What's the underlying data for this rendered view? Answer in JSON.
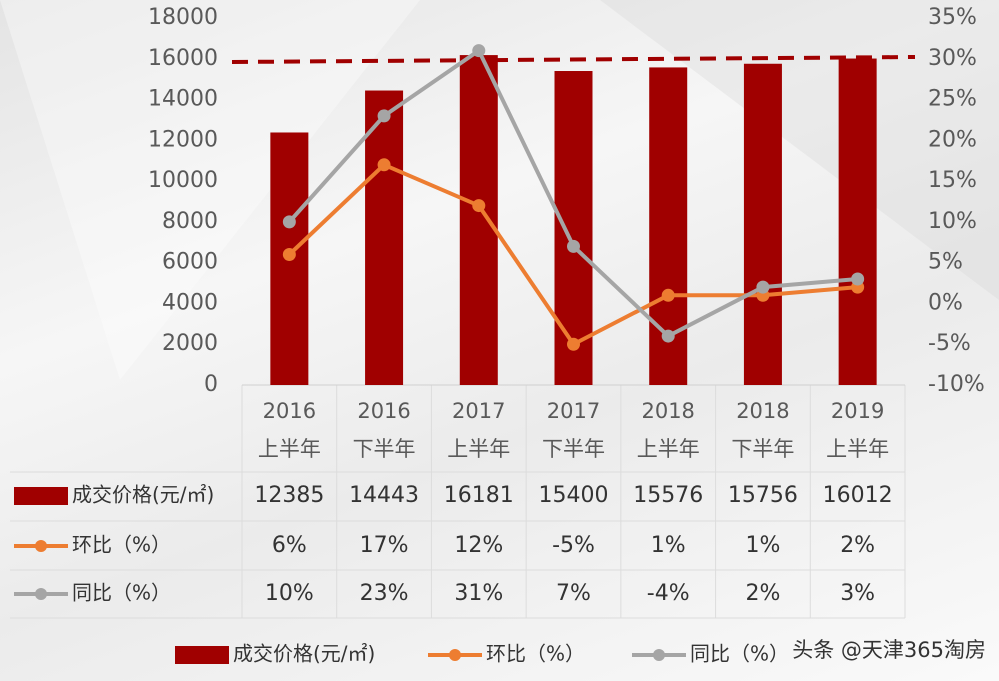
{
  "chart_data": {
    "type": "bar-line",
    "categories": [
      "2016上半年",
      "2016下半年",
      "2017上半年",
      "2017下半年",
      "2018上半年",
      "2018下半年",
      "2019上半年"
    ],
    "series": [
      {
        "name": "成交价格(元/㎡)",
        "type": "bar",
        "color": "#a00000",
        "values": [
          12385,
          14443,
          16181,
          15400,
          15576,
          15756,
          16012
        ]
      },
      {
        "name": "环比（%）",
        "type": "line",
        "axis": "y2",
        "color": "#ed7d31",
        "values": [
          6,
          17,
          12,
          -5,
          1,
          1,
          2
        ],
        "value_labels": [
          "6%",
          "17%",
          "12%",
          "-5%",
          "1%",
          "1%",
          "2%"
        ]
      },
      {
        "name": "同比（%）",
        "type": "line",
        "axis": "y2",
        "color": "#a5a5a5",
        "values": [
          10,
          23,
          31,
          7,
          -4,
          2,
          3
        ],
        "value_labels": [
          "10%",
          "23%",
          "31%",
          "7%",
          "-4%",
          "2%",
          "3%"
        ]
      }
    ],
    "ylim": [
      0,
      18000
    ],
    "yticks": [
      0,
      2000,
      4000,
      6000,
      8000,
      10000,
      12000,
      14000,
      16000,
      18000
    ],
    "y2lim": [
      -10,
      35
    ],
    "y2ticks": [
      {
        "value": -10,
        "label": "-10%"
      },
      {
        "value": -5,
        "label": "-5%"
      },
      {
        "value": 0,
        "label": "0%"
      },
      {
        "value": 5,
        "label": "5%"
      },
      {
        "value": 10,
        "label": "10%"
      },
      {
        "value": 15,
        "label": "15%"
      },
      {
        "value": 20,
        "label": "20%"
      },
      {
        "value": 25,
        "label": "25%"
      },
      {
        "value": 30,
        "label": "30%"
      },
      {
        "value": 35,
        "label": "35%"
      }
    ],
    "data_table": true,
    "watermark": "头条 @天津365淘房"
  }
}
